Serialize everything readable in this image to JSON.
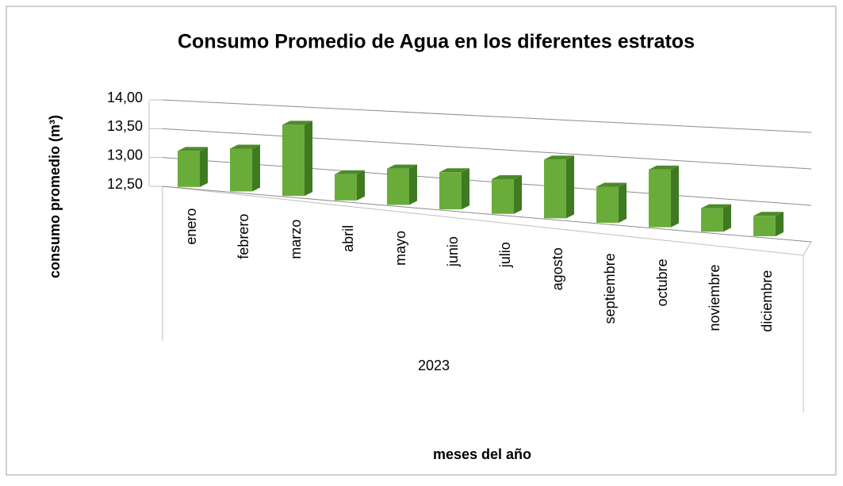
{
  "chart_data": {
    "type": "bar3d",
    "title": "Consumo Promedio de Agua en los diferentes estratos",
    "y_axis_label": "consumo promedio (m³)",
    "x_axis_label": "meses  del año",
    "group_label": "2023",
    "categories": [
      "enero",
      "febrero",
      "marzo",
      "abril",
      "mayo",
      "junio",
      "julio",
      "agosto",
      "septiembre",
      "octubre",
      "noviembre",
      "diciembre"
    ],
    "values": [
      13.2,
      13.3,
      13.75,
      13.0,
      13.15,
      13.15,
      13.1,
      13.45,
      13.1,
      13.4,
      12.9,
      12.85
    ],
    "color": "#6aac3a",
    "ylim": [
      12.5,
      14
    ],
    "yticks": [
      {
        "value": 12.5,
        "label": "12,50"
      },
      {
        "value": 13,
        "label": "13,00"
      },
      {
        "value": 13.5,
        "label": "13,50"
      },
      {
        "value": 14,
        "label": "14,00"
      }
    ],
    "grid": true
  }
}
